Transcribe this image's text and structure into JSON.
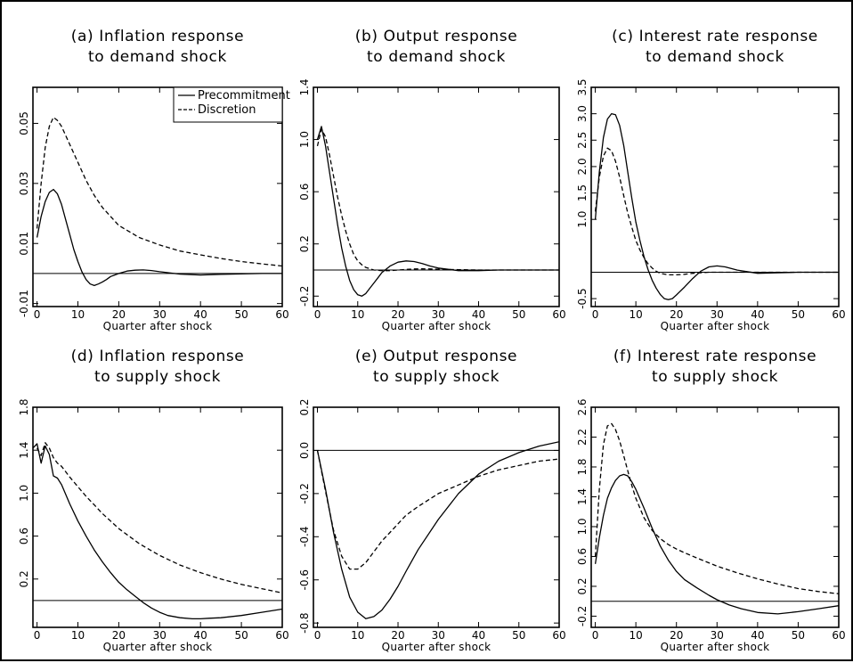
{
  "figure": {
    "background": "#ffffff"
  },
  "chart_data": [
    {
      "id": "a",
      "type": "line",
      "title_line1": "(a) Inflation response",
      "title_line2": "to demand shock",
      "xlabel": "Quarter after shock",
      "xlim": [
        -1,
        60
      ],
      "ylim": [
        -0.011,
        0.062
      ],
      "xticks": [
        "0",
        "10",
        "20",
        "30",
        "40",
        "50",
        "60"
      ],
      "yticks": [
        "-0.01",
        "0.01",
        "0.03",
        "0.05"
      ],
      "zero_line": 0,
      "legend": {
        "placement": "top-right",
        "entries": [
          {
            "label": "Precommitment",
            "style": "solid"
          },
          {
            "label": "Discretion",
            "style": "dashed"
          }
        ]
      },
      "series": [
        {
          "name": "Precommitment",
          "style": "solid",
          "x": [
            0,
            1,
            2,
            3,
            4,
            5,
            6,
            7,
            8,
            9,
            10,
            11,
            12,
            13,
            14,
            15,
            16,
            17,
            18,
            20,
            22,
            24,
            26,
            28,
            30,
            35,
            40,
            45,
            50,
            55,
            60
          ],
          "y": [
            0.012,
            0.019,
            0.024,
            0.027,
            0.028,
            0.0265,
            0.023,
            0.018,
            0.013,
            0.008,
            0.004,
            0.0005,
            -0.002,
            -0.0035,
            -0.004,
            -0.0035,
            -0.0028,
            -0.002,
            -0.001,
            0.0,
            0.0008,
            0.0011,
            0.0012,
            0.001,
            0.0006,
            -0.0002,
            -0.0005,
            -0.0003,
            -0.0001,
            0.0,
            0.0
          ]
        },
        {
          "name": "Discretion",
          "style": "dashed",
          "x": [
            0,
            1,
            2,
            3,
            4,
            5,
            6,
            7,
            8,
            10,
            12,
            14,
            16,
            18,
            20,
            25,
            30,
            35,
            40,
            45,
            50,
            55,
            60
          ],
          "y": [
            0.015,
            0.03,
            0.042,
            0.049,
            0.052,
            0.051,
            0.049,
            0.046,
            0.043,
            0.037,
            0.031,
            0.026,
            0.022,
            0.019,
            0.016,
            0.012,
            0.0095,
            0.0075,
            0.0062,
            0.005,
            0.004,
            0.0032,
            0.0025
          ]
        }
      ]
    },
    {
      "id": "b",
      "type": "line",
      "title_line1": "(b) Output response",
      "title_line2": "to demand shock",
      "xlabel": "Quarter after shock",
      "xlim": [
        -1,
        60
      ],
      "ylim": [
        -0.28,
        1.4
      ],
      "xticks": [
        "0",
        "10",
        "20",
        "30",
        "40",
        "50",
        "60"
      ],
      "yticks": [
        "-0.2",
        "0.2",
        "0.6",
        "1.0",
        "1.4"
      ],
      "zero_line": 0,
      "series": [
        {
          "name": "Precommitment",
          "style": "solid",
          "x": [
            0,
            1,
            2,
            3,
            4,
            5,
            6,
            7,
            8,
            9,
            10,
            11,
            12,
            13,
            14,
            15,
            16,
            18,
            20,
            22,
            24,
            26,
            28,
            30,
            35,
            40,
            45,
            50,
            55,
            60
          ],
          "y": [
            1.0,
            1.1,
            0.95,
            0.75,
            0.55,
            0.35,
            0.17,
            0.03,
            -0.08,
            -0.15,
            -0.19,
            -0.2,
            -0.18,
            -0.14,
            -0.1,
            -0.06,
            -0.02,
            0.03,
            0.06,
            0.07,
            0.065,
            0.05,
            0.03,
            0.015,
            -0.005,
            -0.005,
            0.0,
            0.0,
            0.0,
            0.0
          ]
        },
        {
          "name": "Discretion",
          "style": "dashed",
          "x": [
            0,
            1,
            2,
            3,
            4,
            5,
            6,
            7,
            8,
            9,
            10,
            11,
            12,
            14,
            16,
            18,
            20,
            22,
            24,
            26,
            28,
            30,
            35,
            40,
            45,
            50,
            55,
            60
          ],
          "y": [
            0.95,
            1.08,
            1.02,
            0.88,
            0.72,
            0.56,
            0.42,
            0.3,
            0.2,
            0.12,
            0.07,
            0.04,
            0.02,
            0.0,
            -0.005,
            -0.005,
            0.0,
            0.005,
            0.008,
            0.009,
            0.008,
            0.006,
            0.003,
            0.0,
            0.0,
            0.0,
            0.0,
            0.0
          ]
        }
      ]
    },
    {
      "id": "c",
      "type": "line",
      "title_line1": "(c) Interest rate response",
      "title_line2": "to demand shock",
      "xlabel": "Quarter after shock",
      "xlim": [
        -1,
        60
      ],
      "ylim": [
        -0.65,
        3.5
      ],
      "xticks": [
        "0",
        "10",
        "20",
        "30",
        "40",
        "50",
        "60"
      ],
      "yticks": [
        "-0.5",
        "1.0",
        "1.5",
        "2.0",
        "2.5",
        "3.0",
        "3.5"
      ],
      "zero_line": 0,
      "series": [
        {
          "name": "Precommitment",
          "style": "solid",
          "x": [
            0,
            1,
            2,
            3,
            4,
            5,
            6,
            7,
            8,
            9,
            10,
            11,
            12,
            13,
            14,
            15,
            16,
            17,
            18,
            19,
            20,
            22,
            24,
            26,
            28,
            30,
            32,
            35,
            40,
            45,
            50,
            55,
            60
          ],
          "y": [
            1.0,
            1.9,
            2.55,
            2.9,
            3.0,
            2.98,
            2.78,
            2.4,
            1.9,
            1.4,
            0.95,
            0.6,
            0.3,
            0.05,
            -0.15,
            -0.3,
            -0.42,
            -0.5,
            -0.52,
            -0.5,
            -0.43,
            -0.28,
            -0.12,
            0.02,
            0.1,
            0.12,
            0.1,
            0.04,
            -0.02,
            -0.01,
            0.0,
            0.0,
            0.0
          ]
        },
        {
          "name": "Discretion",
          "style": "dashed",
          "x": [
            0,
            1,
            2,
            3,
            4,
            5,
            6,
            7,
            8,
            9,
            10,
            11,
            12,
            13,
            14,
            15,
            16,
            18,
            20,
            22,
            24,
            26,
            28,
            30,
            35,
            40,
            45,
            50,
            55,
            60
          ],
          "y": [
            1.15,
            1.8,
            2.2,
            2.35,
            2.3,
            2.1,
            1.8,
            1.45,
            1.12,
            0.85,
            0.6,
            0.42,
            0.28,
            0.16,
            0.08,
            0.02,
            -0.02,
            -0.05,
            -0.05,
            -0.04,
            -0.02,
            -0.01,
            0.0,
            0.0,
            0.0,
            0.0,
            0.0,
            0.0,
            0.0,
            0.0
          ]
        }
      ]
    },
    {
      "id": "d",
      "type": "line",
      "title_line1": "(d) Inflation response",
      "title_line2": "to supply shock",
      "xlabel": "Quarter after shock",
      "xlim": [
        -1,
        60
      ],
      "ylim": [
        -0.25,
        1.8
      ],
      "xticks": [
        "0",
        "10",
        "20",
        "30",
        "40",
        "50",
        "60"
      ],
      "yticks": [
        "0.2",
        "0.6",
        "1.0",
        "1.4",
        "1.8"
      ],
      "zero_line": 0,
      "series": [
        {
          "name": "Precommitment",
          "style": "solid",
          "x": [
            -1,
            0,
            1,
            2,
            3,
            4,
            5,
            6,
            8,
            10,
            12,
            14,
            16,
            18,
            20,
            22,
            24,
            26,
            28,
            30,
            32,
            35,
            38,
            40,
            42,
            45,
            50,
            55,
            60
          ],
          "y": [
            1.42,
            1.46,
            1.28,
            1.44,
            1.36,
            1.16,
            1.14,
            1.08,
            0.9,
            0.74,
            0.6,
            0.47,
            0.36,
            0.26,
            0.17,
            0.1,
            0.04,
            -0.02,
            -0.07,
            -0.11,
            -0.14,
            -0.16,
            -0.17,
            -0.17,
            -0.165,
            -0.16,
            -0.14,
            -0.11,
            -0.08
          ]
        },
        {
          "name": "Discretion",
          "style": "dashed",
          "x": [
            0,
            1,
            2,
            3,
            4,
            5,
            6,
            8,
            10,
            12,
            14,
            16,
            18,
            20,
            25,
            30,
            35,
            40,
            45,
            50,
            55,
            60
          ],
          "y": [
            1.42,
            1.35,
            1.47,
            1.42,
            1.33,
            1.28,
            1.25,
            1.15,
            1.06,
            0.97,
            0.89,
            0.81,
            0.74,
            0.67,
            0.53,
            0.42,
            0.33,
            0.26,
            0.2,
            0.15,
            0.11,
            0.07
          ]
        }
      ]
    },
    {
      "id": "e",
      "type": "line",
      "title_line1": "(e) Output response",
      "title_line2": "to supply shock",
      "xlabel": "Quarter after shock",
      "xlim": [
        -1,
        60
      ],
      "ylim": [
        -0.82,
        0.2
      ],
      "xticks": [
        "0",
        "10",
        "20",
        "30",
        "40",
        "50",
        "60"
      ],
      "yticks": [
        "-0.8",
        "-0.6",
        "-0.4",
        "-0.2",
        "0.0",
        "0.2"
      ],
      "zero_line": 0,
      "series": [
        {
          "name": "Precommitment",
          "style": "solid",
          "x": [
            0,
            2,
            4,
            6,
            8,
            10,
            12,
            14,
            16,
            18,
            20,
            22,
            25,
            30,
            35,
            40,
            45,
            50,
            55,
            60
          ],
          "y": [
            0.0,
            -0.18,
            -0.38,
            -0.55,
            -0.68,
            -0.75,
            -0.78,
            -0.77,
            -0.74,
            -0.69,
            -0.63,
            -0.56,
            -0.46,
            -0.32,
            -0.2,
            -0.11,
            -0.05,
            -0.01,
            0.02,
            0.04
          ]
        },
        {
          "name": "Discretion",
          "style": "dashed",
          "x": [
            0,
            2,
            4,
            6,
            8,
            10,
            12,
            14,
            16,
            18,
            20,
            22,
            25,
            30,
            35,
            40,
            45,
            50,
            55,
            60
          ],
          "y": [
            0.0,
            -0.19,
            -0.37,
            -0.49,
            -0.55,
            -0.55,
            -0.52,
            -0.47,
            -0.42,
            -0.38,
            -0.34,
            -0.3,
            -0.26,
            -0.2,
            -0.16,
            -0.12,
            -0.09,
            -0.07,
            -0.05,
            -0.04
          ]
        }
      ]
    },
    {
      "id": "f",
      "type": "line",
      "title_line1": "(f) Interest rate response",
      "title_line2": "to supply shock",
      "xlabel": "Quarter after shock",
      "xlim": [
        -1,
        60
      ],
      "ylim": [
        -0.35,
        2.6
      ],
      "xticks": [
        "0",
        "10",
        "20",
        "30",
        "40",
        "50",
        "60"
      ],
      "yticks": [
        "-0.2",
        "0.2",
        "0.6",
        "1.0",
        "1.4",
        "1.8",
        "2.2",
        "2.6"
      ],
      "zero_line": 0,
      "series": [
        {
          "name": "Precommitment",
          "style": "solid",
          "x": [
            0,
            1,
            2,
            3,
            4,
            5,
            6,
            7,
            8,
            9,
            10,
            12,
            14,
            16,
            18,
            20,
            22,
            25,
            28,
            30,
            33,
            36,
            40,
            45,
            50,
            55,
            60
          ],
          "y": [
            0.5,
            0.85,
            1.15,
            1.38,
            1.52,
            1.62,
            1.68,
            1.7,
            1.68,
            1.6,
            1.5,
            1.25,
            0.98,
            0.74,
            0.55,
            0.4,
            0.29,
            0.18,
            0.08,
            0.02,
            -0.05,
            -0.1,
            -0.15,
            -0.17,
            -0.14,
            -0.1,
            -0.06
          ]
        },
        {
          "name": "Discretion",
          "style": "dashed",
          "x": [
            0,
            1,
            2,
            3,
            4,
            5,
            6,
            7,
            8,
            9,
            10,
            12,
            14,
            16,
            18,
            20,
            22,
            25,
            30,
            35,
            40,
            45,
            50,
            55,
            60
          ],
          "y": [
            0.6,
            1.5,
            2.1,
            2.35,
            2.38,
            2.3,
            2.15,
            1.95,
            1.75,
            1.55,
            1.38,
            1.12,
            0.95,
            0.84,
            0.76,
            0.7,
            0.65,
            0.58,
            0.47,
            0.38,
            0.3,
            0.23,
            0.17,
            0.13,
            0.1
          ]
        }
      ]
    }
  ]
}
